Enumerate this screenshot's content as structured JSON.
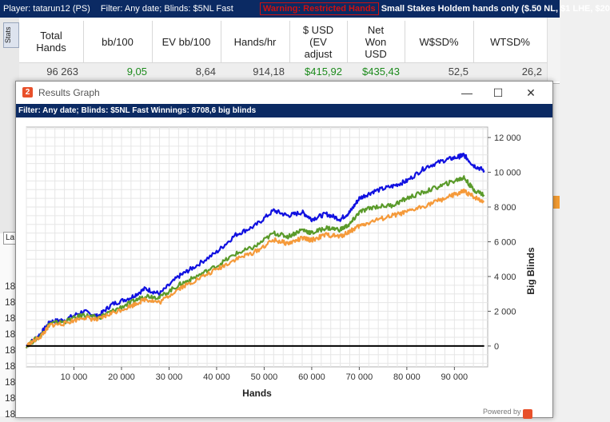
{
  "topbar": {
    "player": "Player: tatarun12 (PS)",
    "filter": "Filter: Any date; Blinds: $5NL Fast",
    "warning": "Warning: Restricted Hands",
    "limit": "Small Stakes Holdem hands only ($.50 NL, $1 LHE, $20"
  },
  "stats_tab": "Stats",
  "columns": [
    {
      "label": "Total\nHands",
      "value": "96 263",
      "color": "#444444"
    },
    {
      "label": "bb/100",
      "value": "9,05",
      "color": "#1c8a1c"
    },
    {
      "label": "EV bb/100",
      "value": "8,64",
      "color": "#444444"
    },
    {
      "label": "Hands/hr",
      "value": "914,18",
      "color": "#444444"
    },
    {
      "label": "$ USD\n(EV\nadjust",
      "value": "$415,92",
      "color": "#1c8a1c"
    },
    {
      "label": "Net\nWon\nUSD",
      "value": "$435,43",
      "color": "#1c8a1c"
    },
    {
      "label": "W$SD%",
      "value": "52,5",
      "color": "#444444"
    },
    {
      "label": "WTSD%",
      "value": "26,2",
      "color": "#444444"
    }
  ],
  "side_rows": [
    "18",
    "18",
    "18",
    "18",
    "18",
    "18",
    "18",
    "18",
    "18"
  ],
  "side_tab": "La",
  "orange_badge": "2",
  "window": {
    "title": "Results Graph",
    "app_icon": "2",
    "filter_text": "Filter: Any date; Blinds: $5NL Fast  Winnings: 8708,6 big blinds",
    "powered_by": "Powered by",
    "buttons": {
      "minimize": "—",
      "maximize": "☐",
      "close": "✕"
    }
  },
  "chart_data": {
    "type": "line",
    "xlabel": "Hands",
    "ylabel": "Big Blinds",
    "xlim": [
      0,
      97000
    ],
    "ylim": [
      -1200,
      12600
    ],
    "x_ticks": [
      10000,
      20000,
      30000,
      40000,
      50000,
      60000,
      70000,
      80000,
      90000
    ],
    "x_tick_labels": [
      "10 000",
      "20 000",
      "30 000",
      "40 000",
      "50 000",
      "60 000",
      "70 000",
      "80 000",
      "90 000"
    ],
    "y_ticks": [
      0,
      2000,
      4000,
      6000,
      8000,
      10000,
      12000
    ],
    "y_tick_labels": [
      "0",
      "2 000",
      "4 000",
      "6 000",
      "8 000",
      "10 000",
      "12 000"
    ],
    "y_axis_side": "right",
    "grid": true,
    "series": [
      {
        "color": "#1010e0",
        "x": [
          0,
          3000,
          5000,
          8000,
          12000,
          15000,
          18000,
          22000,
          25000,
          28000,
          32000,
          35000,
          40000,
          44000,
          48000,
          52000,
          55000,
          58000,
          60000,
          63000,
          66000,
          68000,
          70000,
          73000,
          77000,
          80000,
          84000,
          88000,
          91000,
          92000,
          94000,
          96263
        ],
        "y": [
          0,
          700,
          1400,
          1500,
          2000,
          1700,
          2400,
          2800,
          3300,
          3000,
          4000,
          4500,
          5400,
          6400,
          6900,
          7800,
          7500,
          7700,
          7300,
          7600,
          7300,
          7700,
          8500,
          8900,
          9200,
          9500,
          10300,
          10700,
          10900,
          11000,
          10400,
          10100
        ]
      },
      {
        "color": "#5a9a2a",
        "x": [
          0,
          3000,
          5000,
          8000,
          12000,
          15000,
          18000,
          22000,
          25000,
          28000,
          32000,
          35000,
          40000,
          44000,
          48000,
          52000,
          55000,
          58000,
          60000,
          63000,
          66000,
          68000,
          70000,
          73000,
          77000,
          80000,
          84000,
          88000,
          91000,
          92000,
          94000,
          96263
        ],
        "y": [
          0,
          600,
          1300,
          1400,
          1800,
          1600,
          2000,
          2500,
          2900,
          2800,
          3500,
          3900,
          4600,
          5300,
          5700,
          6500,
          6300,
          6700,
          6500,
          6800,
          6700,
          7000,
          7700,
          8000,
          8100,
          8500,
          8900,
          9300,
          9600,
          9700,
          9000,
          8700
        ]
      },
      {
        "color": "#f59a3a",
        "x": [
          0,
          3000,
          5000,
          8000,
          12000,
          15000,
          18000,
          22000,
          25000,
          28000,
          32000,
          35000,
          40000,
          44000,
          48000,
          52000,
          55000,
          58000,
          60000,
          63000,
          66000,
          68000,
          70000,
          73000,
          77000,
          80000,
          84000,
          88000,
          91000,
          92000,
          94000,
          96263
        ],
        "y": [
          0,
          550,
          1200,
          1300,
          1650,
          1500,
          1900,
          2300,
          2700,
          2500,
          3300,
          3700,
          4400,
          5000,
          5400,
          6100,
          5900,
          6200,
          6100,
          6400,
          6300,
          6600,
          6900,
          7200,
          7500,
          7700,
          8100,
          8500,
          8800,
          8900,
          8600,
          8300
        ]
      },
      {
        "color": "#000000",
        "x": [
          0,
          96263
        ],
        "y": [
          0,
          0
        ]
      }
    ]
  }
}
